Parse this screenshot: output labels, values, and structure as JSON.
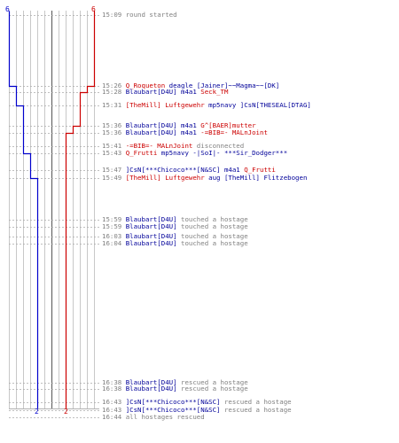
{
  "colors": {
    "blue": "#0000cc",
    "red": "#cc0000",
    "grey": "#999999",
    "text_grey": "#808080"
  },
  "team_counts": {
    "blue_start": "6",
    "red_start": "6",
    "blue_end": "2",
    "red_end": "2"
  },
  "events": [
    {
      "time": "15:09",
      "parts": [
        {
          "t": "round started",
          "c": "msg"
        }
      ]
    },
    {
      "time": "15:26",
      "parts": [
        {
          "t": "Q_Roqueton",
          "c": "red"
        },
        {
          "t": " deagle ",
          "c": "blue"
        },
        {
          "t": "[Jainer]~~Magma~~[DK]",
          "c": "blue"
        }
      ]
    },
    {
      "time": "15:28",
      "parts": [
        {
          "t": "Blaubart[D4U]",
          "c": "blue"
        },
        {
          "t": " m4a1 ",
          "c": "blue"
        },
        {
          "t": "Seck_TM",
          "c": "red"
        }
      ]
    },
    {
      "time": "15:31",
      "parts": [
        {
          "t": "[TheMill] Luftgewehr",
          "c": "red"
        },
        {
          "t": " mp5navy ",
          "c": "blue"
        },
        {
          "t": "]CsN[THESEAL[DTAG]",
          "c": "blue"
        }
      ]
    },
    {
      "time": "15:36",
      "parts": [
        {
          "t": "Blaubart[D4U]",
          "c": "blue"
        },
        {
          "t": " m4a1 ",
          "c": "blue"
        },
        {
          "t": "G^[BAER]mutter",
          "c": "red"
        }
      ]
    },
    {
      "time": "15:36",
      "parts": [
        {
          "t": "Blaubart[D4U]",
          "c": "blue"
        },
        {
          "t": " m4a1 ",
          "c": "blue"
        },
        {
          "t": "-=BIB=- MALnJoint",
          "c": "red"
        }
      ]
    },
    {
      "time": "15:41",
      "parts": [
        {
          "t": "-=BIB=- MALnJoint",
          "c": "red"
        },
        {
          "t": " disconnected",
          "c": "msg"
        }
      ]
    },
    {
      "time": "15:43",
      "parts": [
        {
          "t": "Q_Frutti",
          "c": "red"
        },
        {
          "t": " mp5navy ",
          "c": "blue"
        },
        {
          "t": "-|SoI|- ***Sir_Dodger***",
          "c": "blue"
        }
      ]
    },
    {
      "time": "15:47",
      "parts": [
        {
          "t": "]CsN[***Chicoco***[N&SC]",
          "c": "blue"
        },
        {
          "t": " m4a1 ",
          "c": "blue"
        },
        {
          "t": "Q_Frutti",
          "c": "red"
        }
      ]
    },
    {
      "time": "15:49",
      "parts": [
        {
          "t": "[TheMill] Luftgewehr",
          "c": "red"
        },
        {
          "t": " aug ",
          "c": "blue"
        },
        {
          "t": "[TheMill] Flitzebogen",
          "c": "blue"
        }
      ]
    },
    {
      "time": "15:59",
      "parts": [
        {
          "t": "Blaubart[D4U]",
          "c": "blue"
        },
        {
          "t": " touched a hostage",
          "c": "msg"
        }
      ]
    },
    {
      "time": "15:59",
      "parts": [
        {
          "t": "Blaubart[D4U]",
          "c": "blue"
        },
        {
          "t": " touched a hostage",
          "c": "msg"
        }
      ]
    },
    {
      "time": "16:03",
      "parts": [
        {
          "t": "Blaubart[D4U]",
          "c": "blue"
        },
        {
          "t": " touched a hostage",
          "c": "msg"
        }
      ]
    },
    {
      "time": "16:04",
      "parts": [
        {
          "t": "Blaubart[D4U]",
          "c": "blue"
        },
        {
          "t": " touched a hostage",
          "c": "msg"
        }
      ]
    },
    {
      "time": "16:38",
      "parts": [
        {
          "t": "Blaubart[D4U]",
          "c": "blue"
        },
        {
          "t": " rescued a hostage",
          "c": "msg"
        }
      ]
    },
    {
      "time": "16:38",
      "parts": [
        {
          "t": "Blaubart[D4U]",
          "c": "blue"
        },
        {
          "t": " rescued a hostage",
          "c": "msg"
        }
      ]
    },
    {
      "time": "16:43",
      "parts": [
        {
          "t": "]CsN[***Chicoco***[N&SC]",
          "c": "blue"
        },
        {
          "t": " rescued a hostage",
          "c": "msg"
        }
      ]
    },
    {
      "time": "16:43",
      "parts": [
        {
          "t": "]CsN[***Chicoco***[N&SC]",
          "c": "blue"
        },
        {
          "t": " rescued a hostage",
          "c": "msg"
        }
      ]
    },
    {
      "time": "16:44",
      "parts": [
        {
          "t": "all hostages rescued",
          "c": "msg"
        }
      ]
    }
  ]
}
